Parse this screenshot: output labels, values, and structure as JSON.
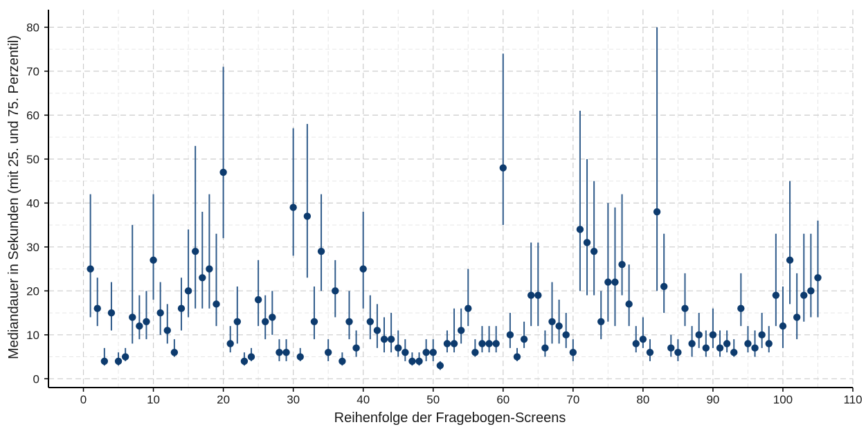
{
  "chart_data": {
    "type": "scatter",
    "xlabel": "Reihenfolge der Fragebogen-Screens",
    "ylabel": "Mediandauer in Sekunden (mit 25. und 75. Perzentil)",
    "xlim": [
      -5,
      110
    ],
    "ylim": [
      -2,
      84
    ],
    "xticks": [
      0,
      10,
      20,
      30,
      40,
      50,
      60,
      70,
      80,
      90,
      100,
      110
    ],
    "yticks": [
      0,
      10,
      20,
      30,
      40,
      50,
      60,
      70,
      80
    ],
    "grid": true,
    "colors": {
      "marker": "#0d3b6e",
      "errorbar": "#2e5a8a",
      "grid": "#cccccc",
      "axis": "#000000"
    },
    "series": [
      {
        "x": [
          1,
          2,
          3,
          4,
          5,
          6,
          7,
          8,
          9,
          10,
          11,
          12,
          13,
          14,
          15,
          16,
          17,
          18,
          19,
          20,
          21,
          22,
          23,
          24,
          25,
          26,
          27,
          28,
          29,
          30,
          31,
          32,
          33,
          34,
          35,
          36,
          37,
          38,
          39,
          40,
          41,
          42,
          43,
          44,
          45,
          46,
          47,
          48,
          49,
          50,
          51,
          52,
          53,
          54,
          55,
          56,
          57,
          58,
          59,
          60,
          61,
          62,
          63,
          64,
          65,
          66,
          67,
          68,
          69,
          70,
          71,
          72,
          73,
          74,
          75,
          76,
          77,
          78,
          79,
          80,
          81,
          82,
          83,
          84,
          85,
          86,
          87,
          88,
          89,
          90,
          91,
          92,
          93,
          94,
          95,
          96,
          97,
          98,
          99,
          100,
          101,
          102,
          103,
          104,
          105
        ],
        "median": [
          25,
          16,
          4,
          15,
          4,
          5,
          14,
          12,
          13,
          27,
          15,
          11,
          6,
          16,
          20,
          29,
          23,
          25,
          17,
          47,
          8,
          13,
          4,
          5,
          18,
          13,
          14,
          6,
          6,
          39,
          5,
          37,
          13,
          29,
          6,
          20,
          4,
          13,
          7,
          25,
          13,
          11,
          9,
          9,
          7,
          6,
          4,
          4,
          6,
          6,
          3,
          8,
          8,
          11,
          16,
          6,
          8,
          8,
          8,
          48,
          10,
          5,
          9,
          19,
          19,
          7,
          13,
          12,
          10,
          6,
          34,
          31,
          29,
          13,
          22,
          22,
          26,
          17,
          8,
          9,
          6,
          38,
          21,
          7,
          6,
          16,
          8,
          10,
          7,
          10,
          7,
          8,
          6,
          16,
          8,
          7,
          10,
          8,
          19,
          12,
          27,
          14,
          19,
          20,
          23
        ],
        "p25": [
          14,
          12,
          3,
          11,
          3,
          4,
          8,
          9,
          9,
          18,
          10,
          8,
          5,
          11,
          14,
          16,
          16,
          16,
          12,
          32,
          6,
          8,
          3,
          4,
          12,
          9,
          10,
          4,
          4,
          28,
          4,
          23,
          9,
          20,
          4,
          14,
          3,
          9,
          5,
          16,
          9,
          7,
          6,
          6,
          5,
          4,
          3,
          3,
          4,
          4,
          2,
          6,
          6,
          8,
          12,
          5,
          6,
          6,
          6,
          35,
          7,
          4,
          7,
          12,
          12,
          5,
          8,
          8,
          7,
          4,
          20,
          19,
          19,
          9,
          13,
          12,
          19,
          12,
          6,
          7,
          4,
          20,
          15,
          5,
          4,
          12,
          5,
          7,
          5,
          7,
          5,
          6,
          5,
          12,
          6,
          5,
          7,
          6,
          12,
          7,
          17,
          9,
          13,
          14,
          14
        ],
        "p75": [
          42,
          23,
          7,
          22,
          6,
          7,
          35,
          19,
          20,
          42,
          22,
          17,
          9,
          23,
          34,
          53,
          38,
          42,
          33,
          71,
          12,
          21,
          6,
          7,
          27,
          19,
          20,
          9,
          9,
          57,
          7,
          58,
          21,
          42,
          9,
          27,
          6,
          20,
          11,
          38,
          19,
          17,
          14,
          15,
          11,
          9,
          6,
          6,
          9,
          9,
          4,
          11,
          16,
          16,
          25,
          9,
          12,
          12,
          12,
          74,
          15,
          7,
          13,
          31,
          31,
          11,
          22,
          18,
          15,
          9,
          61,
          50,
          45,
          20,
          40,
          39,
          42,
          26,
          12,
          14,
          9,
          80,
          33,
          10,
          9,
          24,
          12,
          15,
          11,
          16,
          11,
          11,
          9,
          24,
          12,
          11,
          15,
          12,
          33,
          21,
          45,
          24,
          33,
          33,
          36
        ]
      }
    ]
  }
}
